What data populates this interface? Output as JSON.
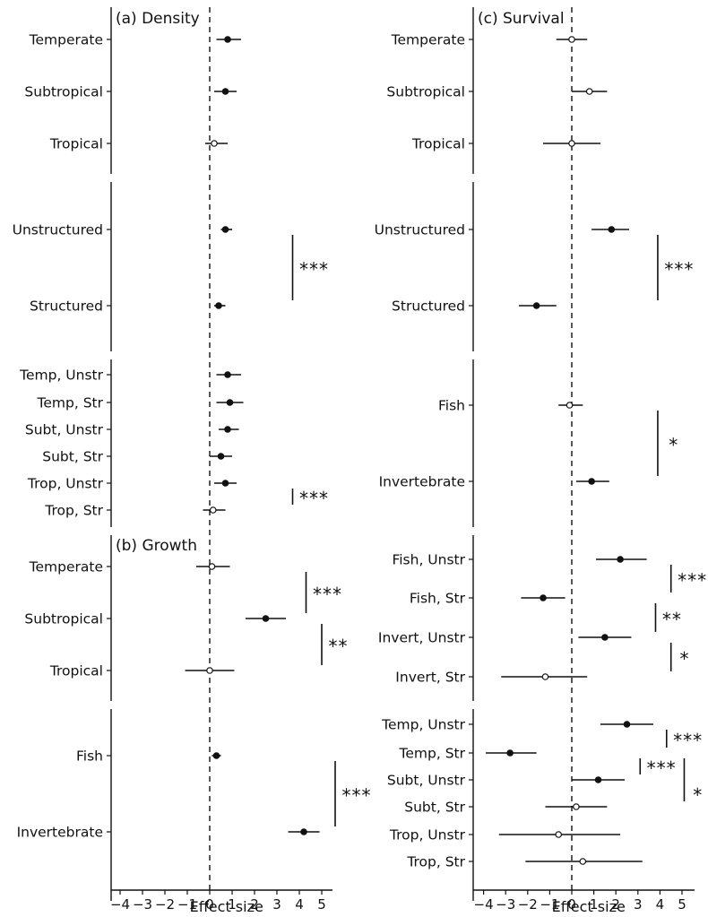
{
  "x_axis_title": "Effect size",
  "x_ticks": [
    -4,
    -3,
    -2,
    -1,
    0,
    1,
    2,
    3,
    4,
    5
  ],
  "chart_data": [
    {
      "type": "scatter",
      "title": "(a) Density",
      "xlabel": "Effect size",
      "xlim": [
        -4.5,
        5.5
      ],
      "groups": [
        {
          "rows": [
            {
              "label": "Temperate",
              "est": 0.8,
              "lo": 0.3,
              "hi": 1.4,
              "significant": true
            },
            {
              "label": "Subtropical",
              "est": 0.7,
              "lo": 0.2,
              "hi": 1.2,
              "significant": true
            },
            {
              "label": "Tropical",
              "est": 0.2,
              "lo": -0.2,
              "hi": 0.8,
              "significant": false
            }
          ],
          "brackets": []
        },
        {
          "rows": [
            {
              "label": "Unstructured",
              "est": 0.7,
              "lo": 0.5,
              "hi": 1.0,
              "significant": true
            },
            {
              "label": "Structured",
              "est": 0.4,
              "lo": 0.2,
              "hi": 0.7,
              "significant": true
            }
          ],
          "brackets": [
            {
              "from": 0,
              "to": 1,
              "x": 3.7,
              "label": "***",
              "label_x": 4.0
            }
          ]
        },
        {
          "rows": [
            {
              "label": "Temp, Unstr",
              "est": 0.8,
              "lo": 0.3,
              "hi": 1.4,
              "significant": true
            },
            {
              "label": "Temp, Str",
              "est": 0.9,
              "lo": 0.3,
              "hi": 1.5,
              "significant": true
            },
            {
              "label": "Subt, Unstr",
              "est": 0.8,
              "lo": 0.4,
              "hi": 1.3,
              "significant": true
            },
            {
              "label": "Subt, Str",
              "est": 0.5,
              "lo": 0.0,
              "hi": 1.0,
              "significant": true
            },
            {
              "label": "Trop, Unstr",
              "est": 0.7,
              "lo": 0.2,
              "hi": 1.2,
              "significant": true
            },
            {
              "label": "Trop, Str",
              "est": 0.15,
              "lo": -0.3,
              "hi": 0.7,
              "significant": false
            }
          ],
          "brackets": [
            {
              "from": 4,
              "to": 5,
              "x": 3.7,
              "label": "***",
              "label_x": 4.0
            }
          ]
        }
      ]
    },
    {
      "type": "scatter",
      "title": "(b) Growth",
      "xlabel": "Effect size",
      "xlim": [
        -4.5,
        5.5
      ],
      "groups": [
        {
          "rows": [
            {
              "label": "Temperate",
              "est": 0.1,
              "lo": -0.6,
              "hi": 0.9,
              "significant": false
            },
            {
              "label": "Subtropical",
              "est": 2.5,
              "lo": 1.6,
              "hi": 3.4,
              "significant": true
            },
            {
              "label": "Tropical",
              "est": 0.0,
              "lo": -1.1,
              "hi": 1.1,
              "significant": false
            }
          ],
          "brackets": [
            {
              "from": 0,
              "to": 1,
              "x": 4.3,
              "label": "***",
              "label_x": 4.6
            },
            {
              "from": 1,
              "to": 2,
              "x": 5.0,
              "label": "**",
              "label_x": 5.3
            }
          ]
        },
        {
          "rows": [
            {
              "label": "Fish",
              "est": 0.3,
              "lo": 0.1,
              "hi": 0.5,
              "significant": true
            },
            {
              "label": "Invertebrate",
              "est": 4.2,
              "lo": 3.5,
              "hi": 4.9,
              "significant": true
            }
          ],
          "brackets": [
            {
              "from": 0,
              "to": 1,
              "x": 5.6,
              "label": "***",
              "label_x": 5.9
            }
          ]
        }
      ]
    },
    {
      "type": "scatter",
      "title": "(c) Survival",
      "xlabel": "Effect size",
      "xlim": [
        -4.5,
        5.5
      ],
      "groups": [
        {
          "rows": [
            {
              "label": "Temperate",
              "est": 0.0,
              "lo": -0.7,
              "hi": 0.7,
              "significant": false
            },
            {
              "label": "Subtropical",
              "est": 0.8,
              "lo": 0.0,
              "hi": 1.6,
              "significant": false
            },
            {
              "label": "Tropical",
              "est": 0.0,
              "lo": -1.3,
              "hi": 1.3,
              "significant": false
            }
          ],
          "brackets": []
        },
        {
          "rows": [
            {
              "label": "Unstructured",
              "est": 1.8,
              "lo": 0.9,
              "hi": 2.6,
              "significant": true
            },
            {
              "label": "Structured",
              "est": -1.6,
              "lo": -2.4,
              "hi": -0.7,
              "significant": true
            }
          ],
          "brackets": [
            {
              "from": 0,
              "to": 1,
              "x": 3.9,
              "label": "***",
              "label_x": 4.2
            }
          ]
        },
        {
          "rows": [
            {
              "label": "Fish",
              "est": -0.1,
              "lo": -0.6,
              "hi": 0.5,
              "significant": false
            },
            {
              "label": "Invertebrate",
              "est": 0.9,
              "lo": 0.2,
              "hi": 1.7,
              "significant": true
            }
          ],
          "brackets": [
            {
              "from": 0,
              "to": 1,
              "x": 3.9,
              "label": "*",
              "label_x": 4.4
            }
          ]
        },
        {
          "rows": [
            {
              "label": "Fish, Unstr",
              "est": 2.2,
              "lo": 1.1,
              "hi": 3.4,
              "significant": true
            },
            {
              "label": "Fish, Str",
              "est": -1.3,
              "lo": -2.3,
              "hi": -0.3,
              "significant": true
            },
            {
              "label": "Invert, Unstr",
              "est": 1.5,
              "lo": 0.3,
              "hi": 2.7,
              "significant": true
            },
            {
              "label": "Invert, Str",
              "est": -1.2,
              "lo": -3.2,
              "hi": 0.7,
              "significant": false
            }
          ],
          "brackets": [
            {
              "from": 0,
              "to": 1,
              "x": 4.5,
              "label": "***",
              "label_x": 4.8
            },
            {
              "from": 1,
              "to": 2,
              "x": 3.8,
              "label": "**",
              "label_x": 4.1
            },
            {
              "from": 2,
              "to": 3,
              "x": 4.5,
              "label": "*",
              "label_x": 4.9
            }
          ]
        },
        {
          "rows": [
            {
              "label": "Temp, Unstr",
              "est": 2.5,
              "lo": 1.3,
              "hi": 3.7,
              "significant": true
            },
            {
              "label": "Temp, Str",
              "est": -2.8,
              "lo": -3.9,
              "hi": -1.6,
              "significant": true
            },
            {
              "label": "Subt, Unstr",
              "est": 1.2,
              "lo": 0.0,
              "hi": 2.4,
              "significant": true
            },
            {
              "label": "Subt, Str",
              "est": 0.2,
              "lo": -1.2,
              "hi": 1.6,
              "significant": false
            },
            {
              "label": "Trop, Unstr",
              "est": -0.6,
              "lo": -3.3,
              "hi": 2.2,
              "significant": false
            },
            {
              "label": "Trop, Str",
              "est": 0.5,
              "lo": -2.1,
              "hi": 3.2,
              "significant": false
            }
          ],
          "brackets": [
            {
              "from": 0,
              "to": 1,
              "x": 4.3,
              "label": "***",
              "label_x": 4.6
            },
            {
              "from": 1,
              "to": 2,
              "x": 3.1,
              "label": "***",
              "label_x": 3.4
            },
            {
              "from": 1,
              "to": 3,
              "x": 5.1,
              "label": "*",
              "label_x": 5.5,
              "label_row": 2.5
            }
          ]
        }
      ]
    }
  ]
}
